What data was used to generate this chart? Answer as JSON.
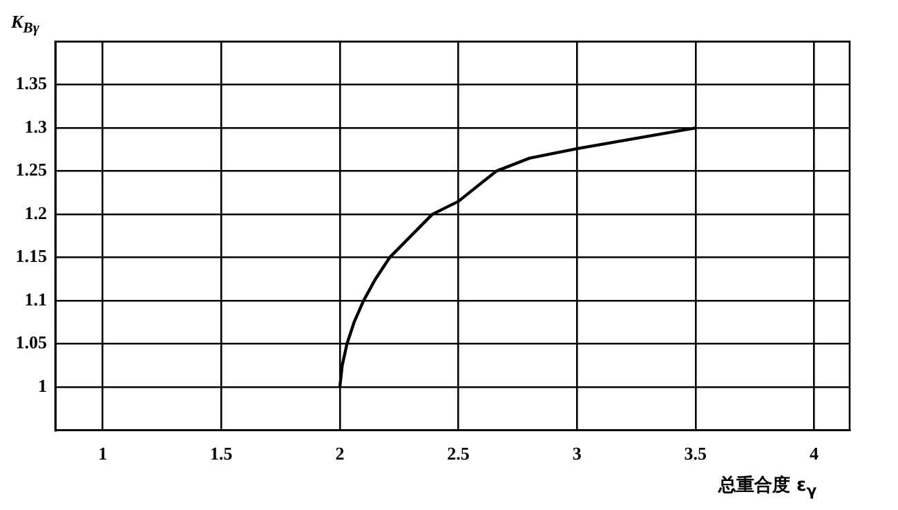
{
  "chart_data": {
    "type": "line",
    "xlabel": "总重合度 ε$_{γ}$",
    "ylabel": "K$_{Bγ}$",
    "x": [
      2,
      2.01,
      2.03,
      2.06,
      2.1,
      2.15,
      2.21,
      2.3,
      2.39,
      2.5,
      2.66,
      2.8,
      3,
      3.25,
      3.5
    ],
    "series": [
      {
        "color": "#000000",
        "values": [
          1,
          1.025,
          1.05,
          1.075,
          1.1,
          1.125,
          1.15,
          1.175,
          1.2,
          1.215,
          1.25,
          1.265,
          1.276,
          1.288,
          1.3
        ]
      }
    ],
    "xlim": [
      0.8,
      4.15
    ],
    "xticks": [
      1,
      1.5,
      2,
      2.5,
      3,
      3.5,
      4
    ],
    "ylim": [
      0.95,
      1.4
    ],
    "yticks": [
      1,
      1.05,
      1.1,
      1.15,
      1.2,
      1.25,
      1.3,
      1.35,
      {
        "value": 1.4,
        "label": null
      }
    ],
    "grid": true,
    "legend": false,
    "marker": "none",
    "line_style": "solid"
  }
}
